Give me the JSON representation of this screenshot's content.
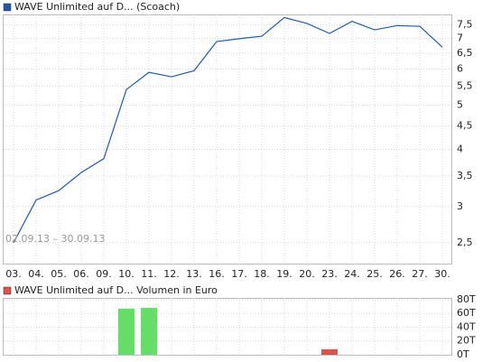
{
  "chart_data": [
    {
      "type": "line",
      "log_scale": true,
      "grid": true,
      "categories": [
        "03.",
        "04.",
        "05.",
        "06.",
        "09.",
        "10.",
        "11.",
        "12.",
        "13.",
        "16.",
        "17.",
        "18.",
        "19.",
        "20.",
        "23.",
        "24.",
        "25.",
        "26.",
        "27.",
        "30."
      ],
      "series": [
        {
          "name": "WAVE Unlimited auf D... (Scoach)",
          "color": "#1f5aa6",
          "values": [
            2.5,
            3.1,
            3.25,
            3.56,
            3.82,
            5.41,
            5.9,
            5.77,
            5.95,
            6.89,
            6.99,
            7.08,
            7.78,
            7.55,
            7.18,
            7.63,
            7.31,
            7.47,
            7.44,
            6.7
          ]
        }
      ],
      "ylim": [
        2.25,
        7.9
      ],
      "yticks": [
        {
          "value": 2.5,
          "label": "2,5"
        },
        3,
        {
          "value": 3.5,
          "label": "3,5"
        },
        4,
        {
          "value": 4.5,
          "label": "4,5"
        },
        5,
        {
          "value": 5.5,
          "label": "5,5"
        },
        6,
        {
          "value": 6.5,
          "label": "6,5"
        },
        7,
        {
          "value": 7.5,
          "label": "7,5"
        }
      ],
      "annotation": "02.09.13 – 30.09.13"
    },
    {
      "type": "bar",
      "grid": true,
      "series": [
        {
          "name": "WAVE Unlimited auf D... Volumen in Euro",
          "color": "#d9534f",
          "values": [
            0,
            0,
            0,
            0,
            0,
            67000,
            68000,
            0,
            0,
            0,
            0,
            0,
            0,
            0,
            8000,
            0,
            0,
            0,
            0,
            0
          ],
          "colors": [
            "#66dd66",
            "#66dd66",
            "#66dd66",
            "#66dd66",
            "#66dd66",
            "#66dd66",
            "#66dd66",
            "#66dd66",
            "#66dd66",
            "#66dd66",
            "#66dd66",
            "#66dd66",
            "#66dd66",
            "#66dd66",
            "#d9534f",
            "#66dd66",
            "#66dd66",
            "#66dd66",
            "#66dd66",
            "#66dd66"
          ]
        }
      ],
      "ylim": [
        0,
        82500
      ],
      "yticks": [
        {
          "value": 0,
          "label": "0T"
        },
        {
          "value": 20000,
          "label": "20T"
        },
        {
          "value": 40000,
          "label": "40T"
        },
        {
          "value": 60000,
          "label": "60T"
        },
        {
          "value": 80000,
          "label": "80T"
        }
      ]
    }
  ]
}
